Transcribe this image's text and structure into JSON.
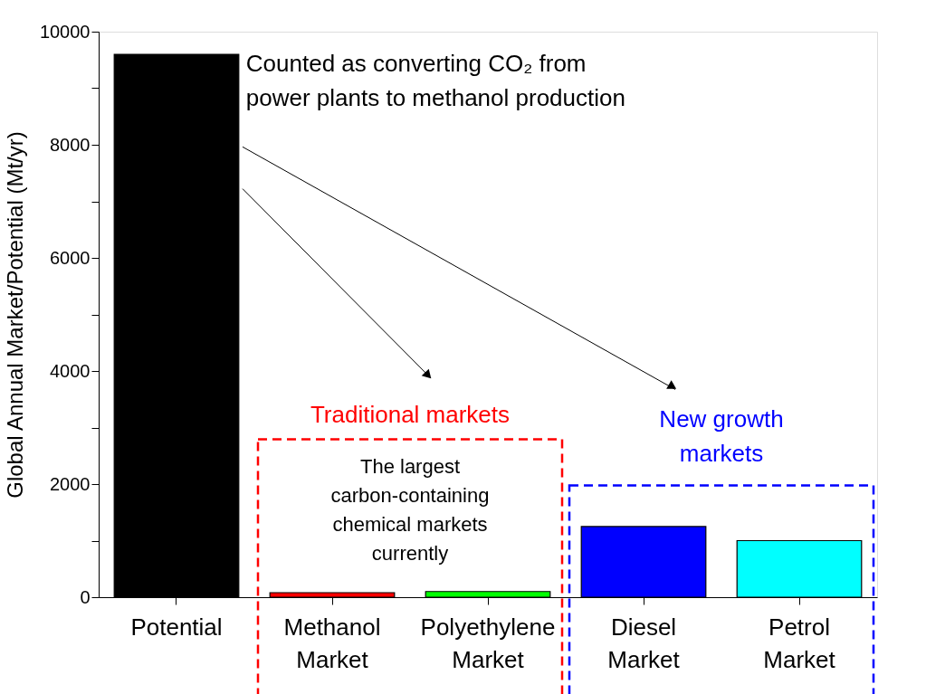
{
  "chart_data": {
    "type": "bar",
    "ylabel": "Global Annual Market/Potential (Mt/yr)",
    "categories": [
      "Potential",
      "Methanol Market",
      "Polyethylene Market",
      "Diesel Market",
      "Petrol Market"
    ],
    "values": [
      9600,
      80,
      100,
      1250,
      1000
    ],
    "colors": [
      "#000000",
      "#ff0000",
      "#00ff00",
      "#0000ff",
      "#00ffff"
    ],
    "ylim": [
      0,
      10000
    ],
    "yticks": [
      0,
      {
        "value": 1000,
        "label": null
      },
      2000,
      {
        "value": 3000,
        "label": null
      },
      4000,
      {
        "value": 5000,
        "label": null
      },
      6000,
      {
        "value": 7000,
        "label": null
      },
      8000,
      {
        "value": 9000,
        "label": null
      },
      10000
    ],
    "annotations": [
      "Counted as converting CO₂ from power plants to methanol production",
      "Traditional markets",
      "The largest carbon-containing chemical markets currently",
      "New growth markets"
    ]
  }
}
